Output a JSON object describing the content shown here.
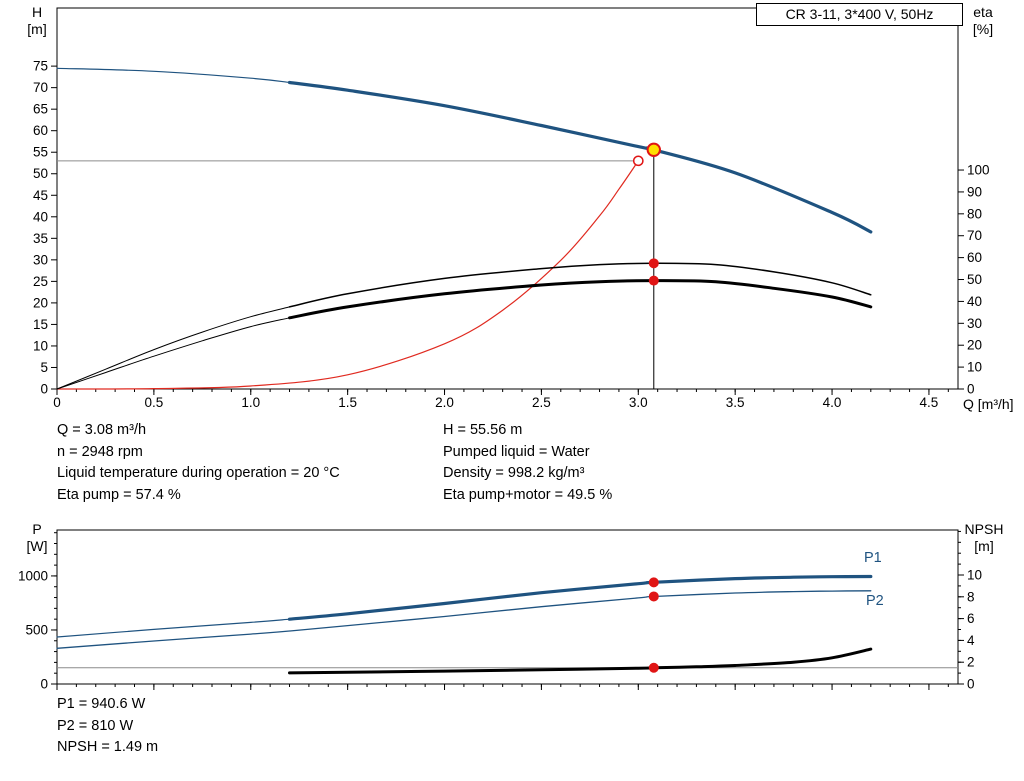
{
  "title_box": {
    "label": "CR 3-11, 3*400 V, 50Hz"
  },
  "colors": {
    "curve_blue": "#1f5380",
    "curve_black": "#000000",
    "system_red": "#e02a20",
    "marker_red": "#e01515",
    "marker_yellow": "#ffdf00",
    "crosshair_gray": "#8c8c8c",
    "axis_black": "#000000"
  },
  "axes_labels": {
    "h_title": "H",
    "h_unit": "[m]",
    "eta_title": "eta",
    "eta_unit": "[%]",
    "q_title": "Q [m³/h]",
    "p_title": "P",
    "p_unit": "[W]",
    "npsh_title": "NPSH",
    "npsh_unit": "[m]",
    "p1": "P1",
    "p2": "P2"
  },
  "info_top": {
    "left": [
      "Q = 3.08 m³/h",
      "n = 2948 rpm",
      "Liquid temperature during operation = 20 °C",
      "Eta pump = 57.4 %"
    ],
    "right": [
      "H = 55.56 m",
      "Pumped liquid = Water",
      "Density = 998.2 kg/m³",
      "Eta pump+motor = 49.5 %"
    ]
  },
  "info_bottom": [
    "P1 = 940.6 W",
    "P2 = 810 W",
    "NPSH = 1.49 m"
  ],
  "chart_data": [
    {
      "name": "qh-eta-chart",
      "type": "line",
      "title": "CR 3-11, 3*400 V, 50Hz",
      "xlabel": "Q [m³/h]",
      "ylabel_left": "H [m]",
      "ylabel_right": "eta [%]",
      "xlim": [
        0,
        4.65
      ],
      "ylim_left": [
        0,
        88.5
      ],
      "ylim_right": [
        0,
        174
      ],
      "grid": false,
      "x_axis": {
        "ticks": [
          0,
          0.5,
          1,
          1.5,
          2,
          2.5,
          3,
          3.5,
          4,
          4.5
        ],
        "labels": [
          "0",
          "0.5",
          "1.0",
          "1.5",
          "2.0",
          "2.5",
          "3.0",
          "3.5",
          "4.0",
          "4.5"
        ],
        "minor_step": 0.1
      },
      "y_left": {
        "ticks": [
          0,
          5,
          10,
          15,
          20,
          25,
          30,
          35,
          40,
          45,
          50,
          55,
          60,
          65,
          70,
          75
        ],
        "labels": [
          "0",
          "5",
          "10",
          "15",
          "20",
          "25",
          "30",
          "35",
          "40",
          "45",
          "50",
          "55",
          "60",
          "65",
          "70",
          "75"
        ],
        "minor_step": null
      },
      "y_right": {
        "ticks": [
          0,
          10,
          20,
          30,
          40,
          50,
          60,
          70,
          80,
          90,
          100
        ],
        "labels": [
          "0",
          "10",
          "20",
          "30",
          "40",
          "50",
          "60",
          "70",
          "80",
          "90",
          "100"
        ],
        "minor_step": null
      },
      "series": [
        {
          "name": "system-curve",
          "label": "System curve",
          "axis": "left",
          "color": "#e02a20",
          "width": 1.2,
          "points": [
            [
              0,
              0
            ],
            [
              0.5,
              0.1
            ],
            [
              1.0,
              0.7
            ],
            [
              1.5,
              3.3
            ],
            [
              2.0,
              10.5
            ],
            [
              2.3,
              18.3
            ],
            [
              2.6,
              29.9
            ],
            [
              2.8,
              40.2
            ],
            [
              2.9,
              46.4
            ],
            [
              3.0,
              53
            ]
          ]
        },
        {
          "name": "eta-pump-curve",
          "label": "Eta pump",
          "axis": "right",
          "color": "#000000",
          "width": 1.5,
          "thin_width": 1.0,
          "split_x": 1.2,
          "points": [
            [
              0,
              0
            ],
            [
              0.25,
              9
            ],
            [
              0.5,
              18
            ],
            [
              0.75,
              26
            ],
            [
              1.0,
              33
            ],
            [
              1.2,
              37.5
            ],
            [
              1.5,
              43.5
            ],
            [
              2.0,
              50.5
            ],
            [
              2.5,
              55
            ],
            [
              2.8,
              56.8
            ],
            [
              3.08,
              57.4
            ],
            [
              3.4,
              56.8
            ],
            [
              3.7,
              53.5
            ],
            [
              4.0,
              48.5
            ],
            [
              4.2,
              43
            ]
          ]
        },
        {
          "name": "eta-pump-motor-curve",
          "label": "Eta pump+motor",
          "axis": "right",
          "color": "#000000",
          "width": 3.0,
          "thin_width": 1.0,
          "split_x": 1.2,
          "points": [
            [
              0,
              0
            ],
            [
              0.25,
              7.5
            ],
            [
              0.5,
              15
            ],
            [
              0.75,
              22
            ],
            [
              1.0,
              28.5
            ],
            [
              1.2,
              32.5
            ],
            [
              1.5,
              37.5
            ],
            [
              2.0,
              43.5
            ],
            [
              2.5,
              47.5
            ],
            [
              2.8,
              49
            ],
            [
              3.08,
              49.5
            ],
            [
              3.4,
              49
            ],
            [
              3.7,
              46
            ],
            [
              4.0,
              42
            ],
            [
              4.2,
              37.5
            ]
          ]
        },
        {
          "name": "head-curve",
          "label": "H",
          "axis": "left",
          "color": "#1f5380",
          "width": 3.2,
          "thin_width": 1.2,
          "split_x": 1.2,
          "points": [
            [
              0,
              74.5
            ],
            [
              0.5,
              73.8
            ],
            [
              1.0,
              72.2
            ],
            [
              1.2,
              71.2
            ],
            [
              1.5,
              69.4
            ],
            [
              2.0,
              65.8
            ],
            [
              2.5,
              61.2
            ],
            [
              3.0,
              56.3
            ],
            [
              3.08,
              55.56
            ],
            [
              3.5,
              50.2
            ],
            [
              4.0,
              41.0
            ],
            [
              4.2,
              36.5
            ]
          ]
        }
      ],
      "crosshairs": [
        {
          "name": "head-crosshair-line",
          "type": "h",
          "axis": "left",
          "y": 53,
          "x_from": 0,
          "x_to": 3.0,
          "color": "#8c8c8c",
          "layer": "under"
        },
        {
          "name": "flow-crosshair-line",
          "type": "v",
          "axis": "left",
          "x": 3.08,
          "y_from": 0,
          "y_to": 55.56,
          "color": "#000000",
          "layer": "over"
        }
      ],
      "markers": [
        {
          "name": "requested-duty-marker",
          "type": "open",
          "x": 3.0,
          "y": 53,
          "axis": "left"
        },
        {
          "name": "eta-pump-marker",
          "type": "dot",
          "x": 3.08,
          "y": 57.4,
          "axis": "right"
        },
        {
          "name": "eta-pump-motor-marker",
          "type": "dot",
          "x": 3.08,
          "y": 49.5,
          "axis": "right"
        },
        {
          "name": "duty-point-marker",
          "type": "duty",
          "x": 3.08,
          "y": 55.56,
          "axis": "left"
        }
      ],
      "duty_point": {
        "Q": 3.08,
        "H": 55.56,
        "eta_pump": 57.4,
        "eta_pump_motor": 49.5,
        "n_rpm": 2948,
        "liquid_temp_c": 20,
        "density": 998.2,
        "liquid": "Water"
      }
    },
    {
      "name": "power-npsh-chart",
      "type": "line",
      "title": "",
      "xlabel": "",
      "ylabel_left": "P [W]",
      "ylabel_right": "NPSH [m]",
      "xlim": [
        0,
        4.65
      ],
      "ylim_left": [
        0,
        1425
      ],
      "ylim_right": [
        0,
        14.13
      ],
      "grid": false,
      "x_axis": {
        "ticks": [
          0,
          0.5,
          1,
          1.5,
          2,
          2.5,
          3,
          3.5,
          4,
          4.5
        ],
        "labels": null,
        "minor_step": 0.1
      },
      "y_left": {
        "ticks": [
          0,
          500,
          1000
        ],
        "labels": [
          "0",
          "500",
          "1000"
        ],
        "minor_step": 100
      },
      "y_right": {
        "ticks": [
          0,
          2,
          4,
          6,
          8,
          10
        ],
        "labels": [
          "0",
          "2",
          "4",
          "6",
          "8",
          "10"
        ],
        "minor_step": 1
      },
      "series": [
        {
          "name": "p2-curve",
          "label": "P2",
          "axis": "left",
          "color": "#1f5380",
          "width": 1.3,
          "points": [
            [
              0,
              330
            ],
            [
              0.5,
              398
            ],
            [
              1.0,
              462
            ],
            [
              1.2,
              490
            ],
            [
              1.5,
              540
            ],
            [
              2.0,
              625
            ],
            [
              2.5,
              715
            ],
            [
              3.0,
              797
            ],
            [
              3.08,
              810
            ],
            [
              3.5,
              842
            ],
            [
              3.8,
              855
            ],
            [
              4.0,
              860
            ],
            [
              4.2,
              862
            ]
          ]
        },
        {
          "name": "npsh-curve",
          "label": "NPSH",
          "axis": "right",
          "color": "#000000",
          "width": 3.0,
          "points": [
            [
              1.2,
              1.02
            ],
            [
              1.5,
              1.08
            ],
            [
              2.0,
              1.18
            ],
            [
              2.5,
              1.3
            ],
            [
              3.0,
              1.45
            ],
            [
              3.08,
              1.49
            ],
            [
              3.3,
              1.58
            ],
            [
              3.5,
              1.7
            ],
            [
              3.8,
              2.0
            ],
            [
              4.0,
              2.4
            ],
            [
              4.2,
              3.2
            ]
          ]
        },
        {
          "name": "p1-curve",
          "label": "P1",
          "axis": "left",
          "color": "#1f5380",
          "width": 3.2,
          "thin_width": 1.2,
          "split_x": 1.2,
          "points": [
            [
              0,
              435
            ],
            [
              0.5,
              505
            ],
            [
              1.0,
              570
            ],
            [
              1.2,
              600
            ],
            [
              1.5,
              650
            ],
            [
              2.0,
              745
            ],
            [
              2.5,
              845
            ],
            [
              3.0,
              928
            ],
            [
              3.08,
              940.6
            ],
            [
              3.5,
              975
            ],
            [
              3.8,
              988
            ],
            [
              4.0,
              993
            ],
            [
              4.2,
              995
            ]
          ]
        }
      ],
      "crosshairs": [
        {
          "name": "npsh-crosshair-line",
          "type": "h",
          "axis": "right",
          "y": 1.49,
          "x_from": 0,
          "x_to": 4.65,
          "color": "#8c8c8c",
          "layer": "under"
        }
      ],
      "markers": [
        {
          "name": "p1-marker",
          "type": "dot",
          "x": 3.08,
          "y": 940.6,
          "axis": "left"
        },
        {
          "name": "p2-marker",
          "type": "dot",
          "x": 3.08,
          "y": 810,
          "axis": "left"
        },
        {
          "name": "npsh-marker",
          "type": "dot",
          "x": 3.08,
          "y": 1.49,
          "axis": "right"
        }
      ],
      "duty_point": {
        "Q": 3.08,
        "P1": 940.6,
        "P2": 810,
        "NPSH": 1.49
      }
    }
  ]
}
